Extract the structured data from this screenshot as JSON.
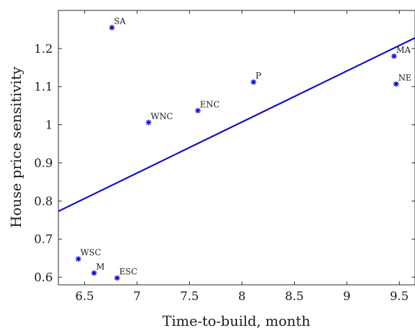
{
  "chart_data": {
    "type": "scatter",
    "xlabel": "Time-to-build, month",
    "ylabel": "House price sensitivity",
    "xlim": [
      6.25,
      9.65
    ],
    "ylim": [
      0.58,
      1.3
    ],
    "x_ticks": [
      "6.5",
      "7",
      "7.5",
      "8",
      "8.5",
      "9",
      "9.5"
    ],
    "y_ticks": [
      "0.6",
      "0.7",
      "0.8",
      "0.9",
      "1",
      "1.1",
      "1.2"
    ],
    "grid": false,
    "points": [
      {
        "label": "SA",
        "x": 6.76,
        "y": 1.255
      },
      {
        "label": "MA",
        "x": 9.45,
        "y": 1.18
      },
      {
        "label": "NE",
        "x": 9.47,
        "y": 1.107
      },
      {
        "label": "P",
        "x": 8.11,
        "y": 1.112
      },
      {
        "label": "ENC",
        "x": 7.58,
        "y": 1.037
      },
      {
        "label": "WNC",
        "x": 7.11,
        "y": 1.006
      },
      {
        "label": "WSC",
        "x": 6.44,
        "y": 0.648
      },
      {
        "label": "M",
        "x": 6.59,
        "y": 0.611
      },
      {
        "label": "ESC",
        "x": 6.81,
        "y": 0.598
      }
    ],
    "fit_line": {
      "x": [
        6.25,
        9.65
      ],
      "y": [
        0.773,
        1.228
      ]
    },
    "colors": {
      "marker": "#1010d8",
      "line": "#0b0bd0"
    }
  }
}
